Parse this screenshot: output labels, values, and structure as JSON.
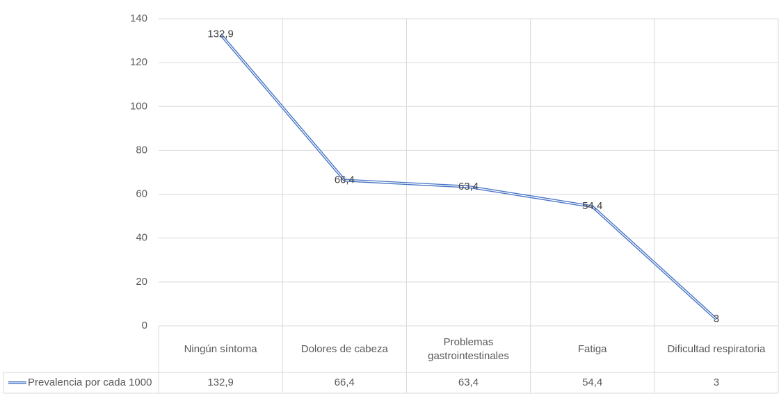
{
  "chart_data": {
    "type": "line",
    "categories": [
      "Ningún síntoma",
      "Dolores de cabeza",
      "Problemas gastrointestinales",
      "Fatiga",
      "Dificultad respiratoria"
    ],
    "series": [
      {
        "name": "Prevalencia por cada 1000",
        "color": "#4472c4",
        "values": [
          132.9,
          66.4,
          63.4,
          54.4,
          3
        ],
        "value_labels": [
          "132,9",
          "66,4",
          "63,4",
          "54,4",
          "3"
        ]
      }
    ],
    "ylim": [
      0,
      140
    ],
    "yticks": [
      0,
      20,
      40,
      60,
      80,
      100,
      120,
      140
    ],
    "grid": true,
    "data_table": true
  }
}
